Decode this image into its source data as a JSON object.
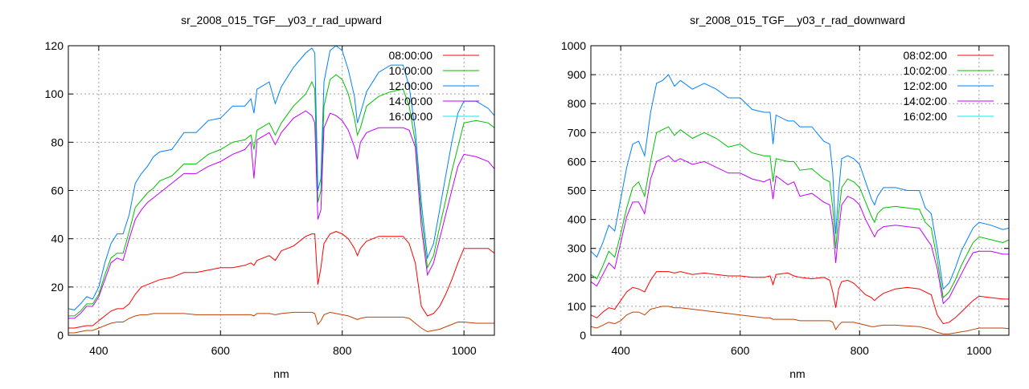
{
  "chart_data": [
    {
      "type": "line",
      "title": "sr_2008_015_TGF__y03_r_rad_upward",
      "xlabel": "nm",
      "ylabel": "",
      "xlim": [
        350,
        1050
      ],
      "ylim": [
        0,
        120
      ],
      "xticks": [
        400,
        600,
        800,
        1000
      ],
      "yticks": [
        0,
        20,
        40,
        60,
        80,
        100,
        120
      ],
      "grid": true,
      "legend_position": "top-right",
      "x": [
        350,
        360,
        370,
        380,
        390,
        400,
        410,
        420,
        430,
        440,
        450,
        460,
        470,
        480,
        490,
        500,
        520,
        540,
        560,
        580,
        600,
        620,
        640,
        650,
        655,
        660,
        680,
        690,
        700,
        720,
        740,
        750,
        755,
        760,
        765,
        770,
        780,
        790,
        800,
        810,
        820,
        825,
        830,
        840,
        860,
        880,
        900,
        910,
        920,
        930,
        940,
        950,
        960,
        970,
        980,
        990,
        1000,
        1020,
        1040,
        1050
      ],
      "series": [
        {
          "name": "08:00:00",
          "legend_color": "#ff0000",
          "color": "#ff0000",
          "values": [
            3,
            3,
            3.5,
            4,
            4,
            6,
            8,
            10,
            11,
            11,
            13,
            17,
            20,
            21,
            22,
            23,
            24,
            26,
            26,
            27,
            28,
            28,
            29,
            30,
            29,
            31,
            33,
            31,
            35,
            37,
            41,
            42,
            42,
            21,
            28,
            38,
            42,
            43,
            42,
            40,
            36,
            33,
            36,
            39,
            41,
            41,
            41,
            38,
            30,
            12,
            8,
            9,
            12,
            17,
            23,
            30,
            36,
            36,
            36,
            34
          ]
        },
        {
          "name": "10:00:00",
          "legend_color": "#00c000",
          "color": "#00c000",
          "values": [
            8,
            8,
            10,
            13,
            13,
            17,
            25,
            32,
            34,
            34,
            43,
            53,
            56,
            59,
            61,
            64,
            66,
            71,
            71,
            75,
            77,
            80,
            81,
            83,
            77,
            85,
            88,
            83,
            88,
            95,
            100,
            105,
            102,
            55,
            60,
            95,
            106,
            108,
            106,
            100,
            90,
            83,
            86,
            95,
            99,
            101,
            102,
            95,
            80,
            50,
            28,
            33,
            45,
            56,
            68,
            78,
            88,
            89,
            88,
            86
          ]
        },
        {
          "name": "12:00:00",
          "legend_color": "#0080ff",
          "color": "#0080ff",
          "values": [
            11,
            10.5,
            13,
            16,
            15,
            20,
            30,
            38,
            42,
            42,
            50,
            63,
            67,
            70,
            74,
            76,
            77,
            84,
            84,
            89,
            90,
            95,
            95,
            98,
            92,
            102,
            105,
            96,
            103,
            111,
            117,
            119,
            117,
            60,
            65,
            105,
            118,
            120,
            118,
            110,
            99,
            88,
            92,
            101,
            109,
            112,
            112,
            103,
            85,
            55,
            32,
            38,
            52,
            66,
            80,
            92,
            97,
            97,
            94,
            91
          ]
        },
        {
          "name": "14:00:00",
          "legend_color": "#c000ff",
          "color": "#c000ff",
          "values": [
            7,
            7,
            9,
            12,
            12,
            16,
            23,
            30,
            32,
            31,
            40,
            48,
            52,
            55,
            57,
            59,
            63,
            67,
            67,
            70,
            72,
            75,
            77,
            80,
            65,
            81,
            84,
            79,
            84,
            90,
            93,
            91,
            88,
            48,
            52,
            86,
            92,
            91,
            89,
            85,
            78,
            73,
            80,
            84,
            86,
            86,
            86,
            85,
            78,
            45,
            25,
            30,
            40,
            50,
            60,
            70,
            75,
            74,
            72,
            69
          ]
        },
        {
          "name": "16:00:00",
          "legend_color": "#00eeee",
          "color": "#c04000",
          "values": [
            1,
            1,
            1.5,
            2,
            2,
            3,
            4,
            5,
            5.5,
            5.5,
            7,
            8,
            8.5,
            8.5,
            9,
            9,
            9,
            9,
            8.5,
            8.5,
            8.5,
            8.5,
            8.5,
            8.5,
            8,
            9,
            9,
            8.5,
            9,
            9.5,
            9.5,
            9.5,
            9,
            4.5,
            6,
            8.5,
            9.5,
            9,
            8.5,
            8,
            7,
            6.5,
            7,
            7.5,
            7.5,
            7.5,
            7.5,
            7,
            5,
            3,
            1.5,
            2,
            2.5,
            3.5,
            4.5,
            5.5,
            5.5,
            5,
            5,
            5
          ]
        }
      ]
    },
    {
      "type": "line",
      "title": "sr_2008_015_TGF__y03_r_rad_downward",
      "xlabel": "nm",
      "ylabel": "",
      "xlim": [
        350,
        1050
      ],
      "ylim": [
        0,
        1000
      ],
      "xticks": [
        400,
        600,
        800,
        1000
      ],
      "yticks": [
        0,
        100,
        200,
        300,
        400,
        500,
        600,
        700,
        800,
        900,
        1000
      ],
      "grid": true,
      "legend_position": "top-right",
      "x": [
        350,
        360,
        370,
        380,
        390,
        400,
        410,
        420,
        430,
        440,
        450,
        460,
        470,
        480,
        490,
        500,
        520,
        540,
        560,
        580,
        600,
        620,
        640,
        650,
        655,
        660,
        680,
        690,
        700,
        720,
        740,
        750,
        755,
        760,
        765,
        770,
        780,
        790,
        800,
        810,
        820,
        825,
        830,
        840,
        860,
        880,
        900,
        910,
        920,
        930,
        940,
        950,
        960,
        970,
        980,
        990,
        1000,
        1020,
        1040,
        1050
      ],
      "series": [
        {
          "name": "08:02:00",
          "legend_color": "#ff0000",
          "color": "#ff0000",
          "values": [
            70,
            60,
            80,
            95,
            90,
            120,
            150,
            165,
            160,
            150,
            190,
            220,
            220,
            220,
            215,
            220,
            210,
            215,
            210,
            205,
            205,
            200,
            200,
            205,
            175,
            210,
            215,
            205,
            200,
            195,
            200,
            190,
            150,
            95,
            160,
            185,
            190,
            180,
            160,
            140,
            130,
            120,
            130,
            145,
            160,
            165,
            160,
            150,
            140,
            70,
            40,
            45,
            60,
            80,
            100,
            120,
            135,
            130,
            125,
            125
          ]
        },
        {
          "name": "10:02:00",
          "legend_color": "#00c000",
          "color": "#00c000",
          "values": [
            210,
            195,
            240,
            290,
            270,
            350,
            440,
            510,
            530,
            480,
            600,
            700,
            710,
            720,
            690,
            710,
            680,
            700,
            680,
            650,
            660,
            630,
            620,
            620,
            530,
            610,
            600,
            600,
            570,
            575,
            540,
            530,
            440,
            300,
            420,
            510,
            540,
            530,
            510,
            460,
            410,
            390,
            420,
            440,
            445,
            440,
            435,
            390,
            370,
            260,
            130,
            150,
            190,
            240,
            280,
            320,
            340,
            330,
            320,
            330
          ]
        },
        {
          "name": "12:02:00",
          "legend_color": "#0080ff",
          "color": "#0080ff",
          "values": [
            290,
            270,
            320,
            380,
            360,
            470,
            580,
            660,
            670,
            620,
            770,
            870,
            880,
            900,
            860,
            880,
            850,
            870,
            850,
            820,
            820,
            780,
            770,
            770,
            660,
            760,
            740,
            740,
            720,
            720,
            670,
            660,
            560,
            350,
            500,
            610,
            620,
            610,
            590,
            530,
            470,
            450,
            480,
            510,
            510,
            500,
            500,
            440,
            420,
            300,
            160,
            180,
            230,
            290,
            330,
            370,
            390,
            380,
            365,
            370
          ]
        },
        {
          "name": "14:02:00",
          "legend_color": "#c000ff",
          "color": "#c000ff",
          "values": [
            185,
            170,
            210,
            250,
            230,
            320,
            410,
            460,
            460,
            420,
            540,
            600,
            610,
            620,
            600,
            610,
            590,
            600,
            580,
            560,
            560,
            540,
            530,
            540,
            470,
            550,
            520,
            530,
            480,
            490,
            460,
            450,
            380,
            250,
            360,
            450,
            480,
            470,
            450,
            400,
            360,
            340,
            360,
            375,
            380,
            375,
            370,
            340,
            310,
            230,
            110,
            130,
            170,
            210,
            250,
            285,
            290,
            290,
            280,
            280
          ]
        },
        {
          "name": "16:02:00",
          "legend_color": "#00eeee",
          "color": "#c04000",
          "values": [
            30,
            25,
            35,
            45,
            40,
            50,
            70,
            80,
            80,
            70,
            90,
            95,
            100,
            100,
            95,
            95,
            90,
            85,
            80,
            75,
            70,
            65,
            60,
            60,
            55,
            55,
            55,
            55,
            50,
            50,
            50,
            50,
            45,
            20,
            35,
            45,
            45,
            45,
            40,
            35,
            30,
            30,
            32,
            35,
            35,
            32,
            30,
            25,
            20,
            10,
            5,
            5,
            8,
            12,
            15,
            20,
            25,
            25,
            25,
            23
          ]
        }
      ]
    }
  ]
}
